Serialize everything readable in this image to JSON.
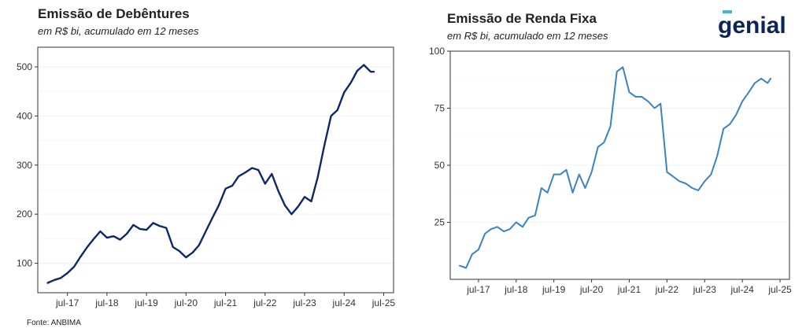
{
  "brand": {
    "logo_text": "genial"
  },
  "footer": {
    "source": "Fonte: ANBIMA"
  },
  "chart_data": [
    {
      "type": "line",
      "title": "Emissão de Debêntures",
      "subtitle": "em R$ bi, acumulado em 12 meses",
      "xlabel": "",
      "ylabel": "",
      "xlim": [
        2016.75,
        2025.75
      ],
      "ylim": [
        40,
        540
      ],
      "yticks": [
        100,
        200,
        300,
        400,
        500
      ],
      "xticks": [
        2017.5,
        2018.5,
        2019.5,
        2020.5,
        2021.5,
        2022.5,
        2023.5,
        2024.5,
        2025.5
      ],
      "xtick_labels": [
        "jul-17",
        "jul-18",
        "jul-19",
        "jul-20",
        "jul-21",
        "jul-22",
        "jul-23",
        "jul-24",
        "jul-25"
      ],
      "grid": true,
      "line_color": "#0d2769",
      "series": [
        {
          "x": [
            2017.0,
            2017.17,
            2017.33,
            2017.5,
            2017.67,
            2017.83,
            2018.0,
            2018.17,
            2018.33,
            2018.5,
            2018.67,
            2018.83,
            2019.0,
            2019.17,
            2019.33,
            2019.5,
            2019.67,
            2019.83,
            2020.0,
            2020.17,
            2020.33,
            2020.5,
            2020.67,
            2020.83,
            2021.0,
            2021.17,
            2021.33,
            2021.5,
            2021.67,
            2021.83,
            2022.0,
            2022.17,
            2022.33,
            2022.5,
            2022.67,
            2022.83,
            2023.0,
            2023.17,
            2023.33,
            2023.5,
            2023.67,
            2023.83,
            2024.0,
            2024.17,
            2024.33,
            2024.5,
            2024.67,
            2024.83,
            2025.0,
            2025.17,
            2025.25
          ],
          "values": [
            60,
            66,
            70,
            80,
            93,
            113,
            133,
            150,
            165,
            152,
            155,
            148,
            160,
            178,
            170,
            168,
            182,
            176,
            172,
            133,
            125,
            112,
            122,
            137,
            165,
            193,
            218,
            252,
            258,
            277,
            285,
            294,
            290,
            262,
            282,
            248,
            218,
            200,
            215,
            235,
            226,
            275,
            340,
            400,
            412,
            448,
            468,
            492,
            504,
            490,
            490
          ]
        }
      ]
    },
    {
      "type": "line",
      "title": "Emissão de Renda Fixa",
      "subtitle": "em R$ bi, acumulado em 12 meses",
      "xlabel": "",
      "ylabel": "",
      "xlim": [
        2016.75,
        2025.75
      ],
      "ylim": [
        0,
        100
      ],
      "yticks": [
        25,
        50,
        75,
        100
      ],
      "xticks": [
        2017.5,
        2018.5,
        2019.5,
        2020.5,
        2021.5,
        2022.5,
        2023.5,
        2024.5,
        2025.5
      ],
      "xtick_labels": [
        "jul-17",
        "jul-18",
        "jul-19",
        "jul-20",
        "jul-21",
        "jul-22",
        "jul-23",
        "jul-24",
        "jul-25"
      ],
      "grid": true,
      "line_color": "#3b83c4",
      "series": [
        {
          "x": [
            2017.0,
            2017.17,
            2017.33,
            2017.5,
            2017.67,
            2017.83,
            2018.0,
            2018.17,
            2018.33,
            2018.5,
            2018.67,
            2018.83,
            2019.0,
            2019.17,
            2019.33,
            2019.5,
            2019.67,
            2019.83,
            2020.0,
            2020.17,
            2020.33,
            2020.5,
            2020.67,
            2020.83,
            2021.0,
            2021.17,
            2021.33,
            2021.5,
            2021.67,
            2021.75,
            2021.83,
            2022.0,
            2022.17,
            2022.33,
            2022.5,
            2022.67,
            2022.75,
            2022.83,
            2023.0,
            2023.17,
            2023.33,
            2023.5,
            2023.67,
            2023.83,
            2024.0,
            2024.17,
            2024.33,
            2024.5,
            2024.67,
            2024.83,
            2025.0,
            2025.17,
            2025.25
          ],
          "values": [
            6,
            5,
            11,
            13,
            20,
            22,
            23,
            21,
            22,
            25,
            23,
            27,
            28,
            40,
            38,
            46,
            46,
            48,
            38,
            46,
            40,
            47,
            58,
            60,
            67,
            91,
            93,
            82,
            80,
            80,
            80,
            78,
            75,
            77,
            47,
            45,
            44,
            43,
            42,
            40,
            39,
            43,
            46,
            54,
            66,
            68,
            72,
            78,
            82,
            86,
            88,
            86,
            88
          ]
        }
      ]
    }
  ]
}
